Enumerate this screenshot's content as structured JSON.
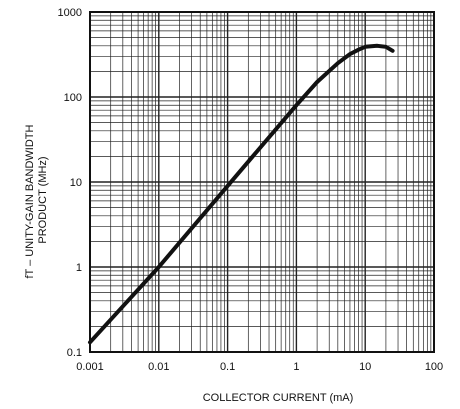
{
  "chart_data": {
    "type": "line",
    "xscale": "log",
    "yscale": "log",
    "xlim": [
      0.001,
      100
    ],
    "ylim": [
      0.1,
      1000
    ],
    "grid": true,
    "xlabel": "COLLECTOR CURRENT (mA)",
    "ylabel": "fT – UNITY-GAIN BANDWIDTH PRODUCT (MHz)",
    "ylabel_lines": [
      "fT – UNITY-GAIN BANDWIDTH",
      "PRODUCT (MHz)"
    ],
    "x_ticks": [
      {
        "value": 0.001,
        "label": "0.001"
      },
      {
        "value": 0.01,
        "label": "0.01"
      },
      {
        "value": 0.1,
        "label": "0.1"
      },
      {
        "value": 1,
        "label": "1"
      },
      {
        "value": 10,
        "label": "10"
      },
      {
        "value": 100,
        "label": "100"
      }
    ],
    "y_ticks": [
      {
        "value": 0.1,
        "label": "0.1"
      },
      {
        "value": 1,
        "label": "1"
      },
      {
        "value": 10,
        "label": "10"
      },
      {
        "value": 100,
        "label": "100"
      },
      {
        "value": 1000,
        "label": "1000"
      }
    ],
    "series": [
      {
        "x": [
          0.001,
          0.01,
          0.1,
          1,
          2,
          4,
          6,
          8,
          10,
          15,
          20,
          25
        ],
        "y": [
          0.13,
          1.0,
          9.0,
          80,
          150,
          250,
          320,
          360,
          390,
          400,
          390,
          350
        ]
      }
    ]
  }
}
